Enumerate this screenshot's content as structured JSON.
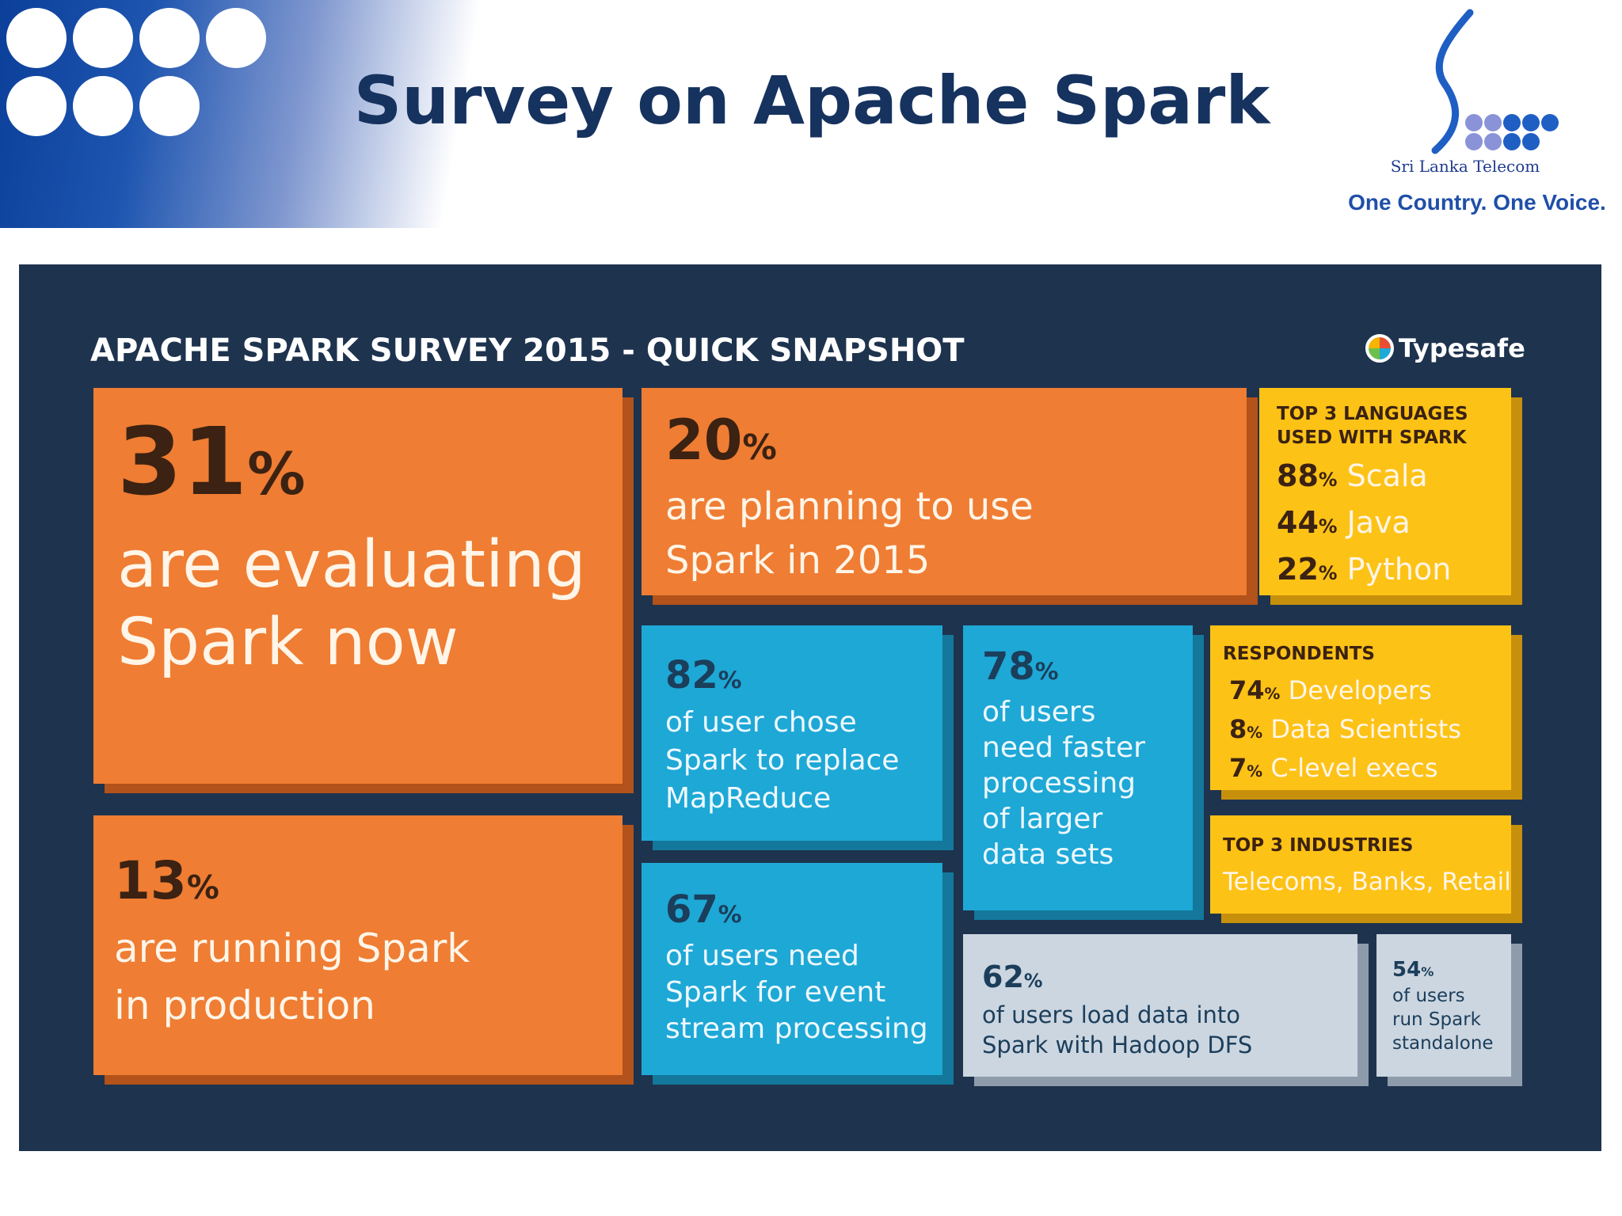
{
  "slide": {
    "title": "Survey on Apache Spark"
  },
  "logo": {
    "name": "Sri Lanka Telecom",
    "tagline": "One Country. One Voice.",
    "s_color": "#1f5fc4",
    "dot_colors": [
      "#8a93d8",
      "#1f5fc4"
    ]
  },
  "infographic": {
    "title": "APACHE SPARK SURVEY 2015 - QUICK SNAPSHOT",
    "brand": "Typesafe",
    "colors": {
      "orange": "#ef7d33",
      "blue": "#1ea8d6",
      "yellow": "#fdc216",
      "grey": "#ccd6e0",
      "background": "#1e334e"
    },
    "evaluating": {
      "value": "31",
      "lines": [
        "are evaluating",
        "Spark now"
      ]
    },
    "production": {
      "value": "13",
      "lines": [
        "are running Spark",
        "in production"
      ]
    },
    "planning": {
      "value": "20",
      "lines": [
        "are planning to use",
        "Spark in 2015"
      ]
    },
    "replace": {
      "value": "82",
      "lines": [
        "of user chose",
        "Spark to replace",
        "MapReduce"
      ]
    },
    "faster": {
      "value": "78",
      "lines": [
        "of users",
        "need faster",
        "processing",
        "of larger",
        "data sets"
      ]
    },
    "stream": {
      "value": "67",
      "lines": [
        "of users need",
        "Spark for event",
        "stream processing"
      ]
    },
    "hadoop": {
      "value": "62",
      "lines": [
        "of users load data into",
        "Spark with Hadoop DFS"
      ]
    },
    "standalone": {
      "value": "54",
      "lines": [
        "of users",
        "run Spark",
        "standalone"
      ]
    },
    "languages": {
      "heading": [
        "TOP 3 LANGUAGES",
        "USED WITH SPARK"
      ],
      "items": [
        {
          "value": "88",
          "label": "Scala"
        },
        {
          "value": "44",
          "label": "Java"
        },
        {
          "value": "22",
          "label": "Python"
        }
      ]
    },
    "respondents": {
      "heading": "RESPONDENTS",
      "items": [
        {
          "value": "74",
          "label": "Developers"
        },
        {
          "value": "8",
          "label": "Data Scientists"
        },
        {
          "value": "7",
          "label": "C-level execs"
        }
      ]
    },
    "industries": {
      "heading": "TOP 3 INDUSTRIES",
      "text": "Telecoms, Banks, Retail"
    },
    "percent_sign": "%"
  }
}
